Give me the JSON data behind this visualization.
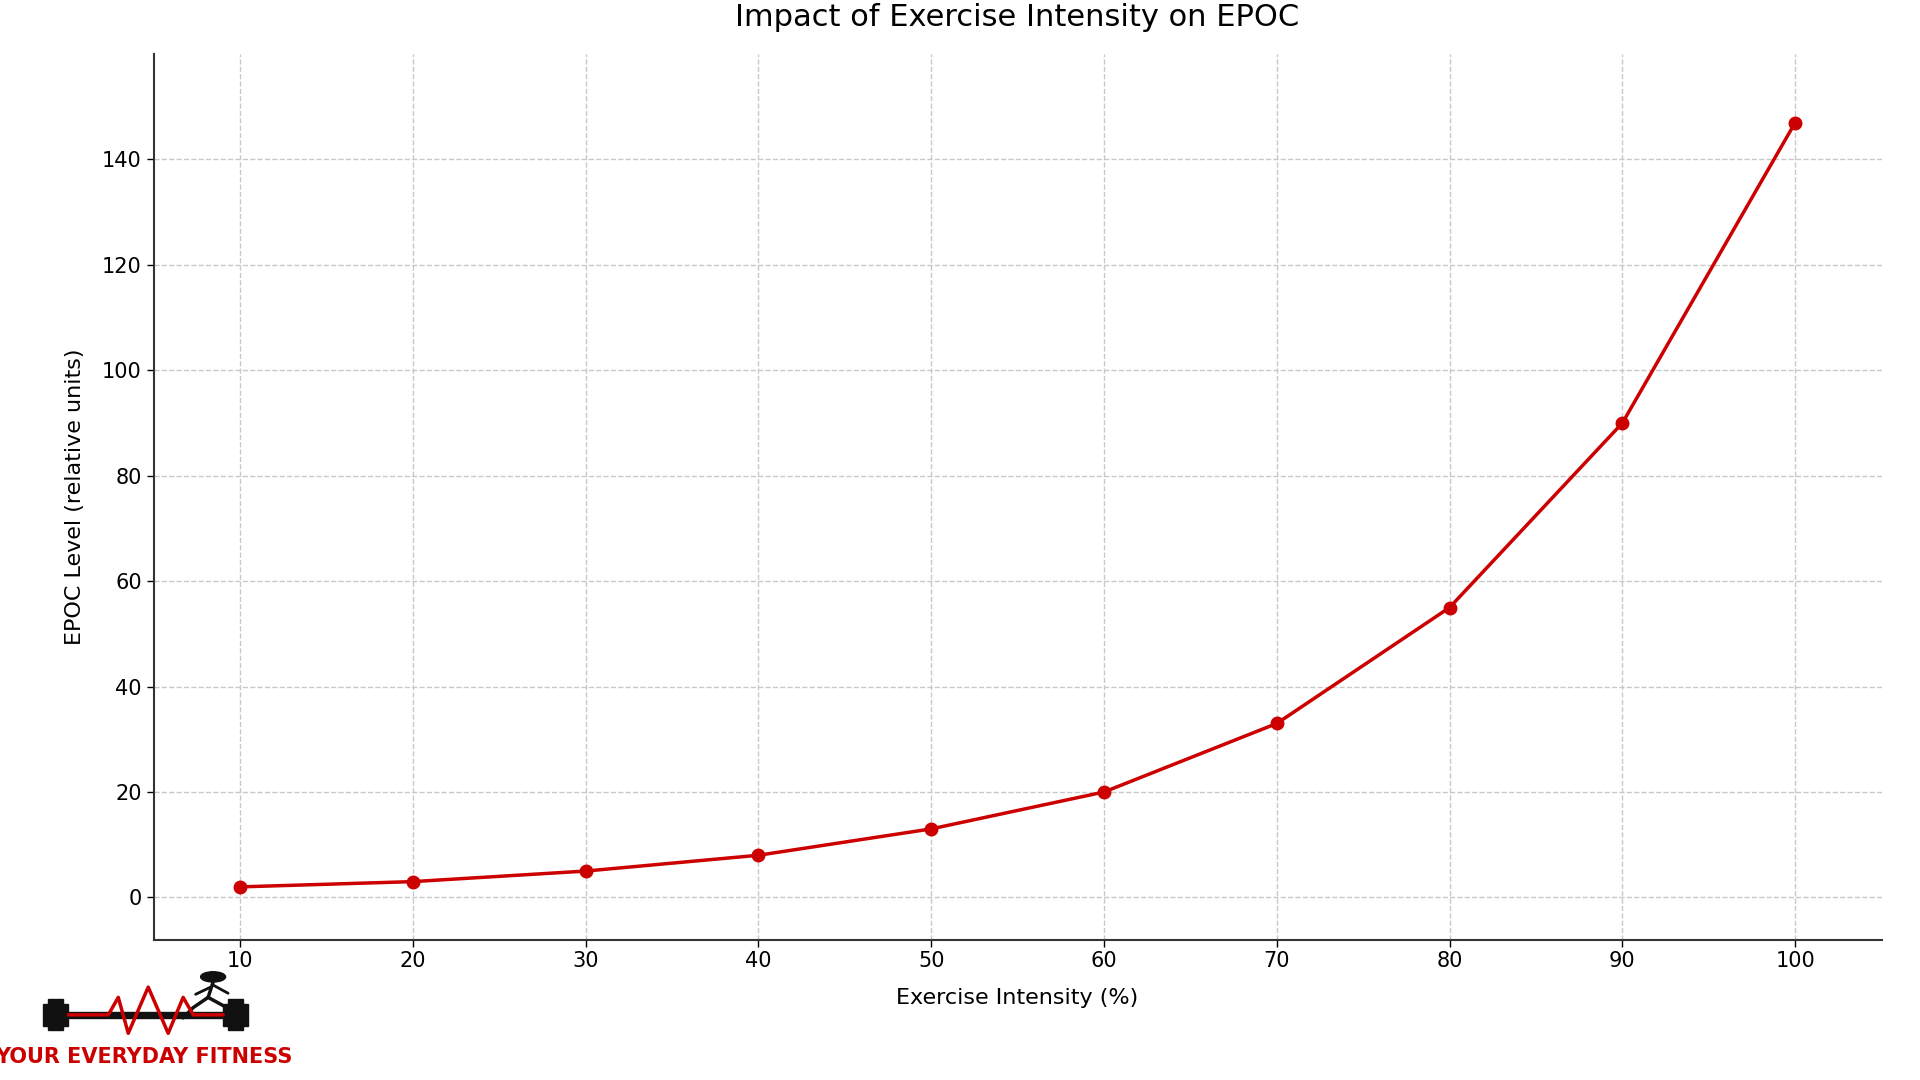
{
  "title": "Impact of Exercise Intensity on EPOC",
  "xlabel": "Exercise Intensity (%)",
  "ylabel": "EPOC Level (relative units)",
  "x": [
    10,
    20,
    30,
    40,
    50,
    60,
    70,
    80,
    90,
    100
  ],
  "y": [
    2,
    3,
    5,
    8,
    13,
    20,
    33,
    55,
    90,
    147
  ],
  "line_color": "#cc0000",
  "marker_color": "#cc0000",
  "background_color": "#ffffff",
  "xlim": [
    5,
    105
  ],
  "ylim": [
    -8,
    160
  ],
  "xticks": [
    10,
    20,
    30,
    40,
    50,
    60,
    70,
    80,
    90,
    100
  ],
  "yticks": [
    0,
    20,
    40,
    60,
    80,
    100,
    120,
    140
  ],
  "grid_color": "#c8c8c8",
  "title_fontsize": 22,
  "axis_label_fontsize": 16,
  "tick_fontsize": 15,
  "line_width": 2.5,
  "marker_size": 9,
  "watermark_text": "YOUR EVERYDAY FITNESS",
  "watermark_color": "#cc0000",
  "icon_dark": "#111111"
}
